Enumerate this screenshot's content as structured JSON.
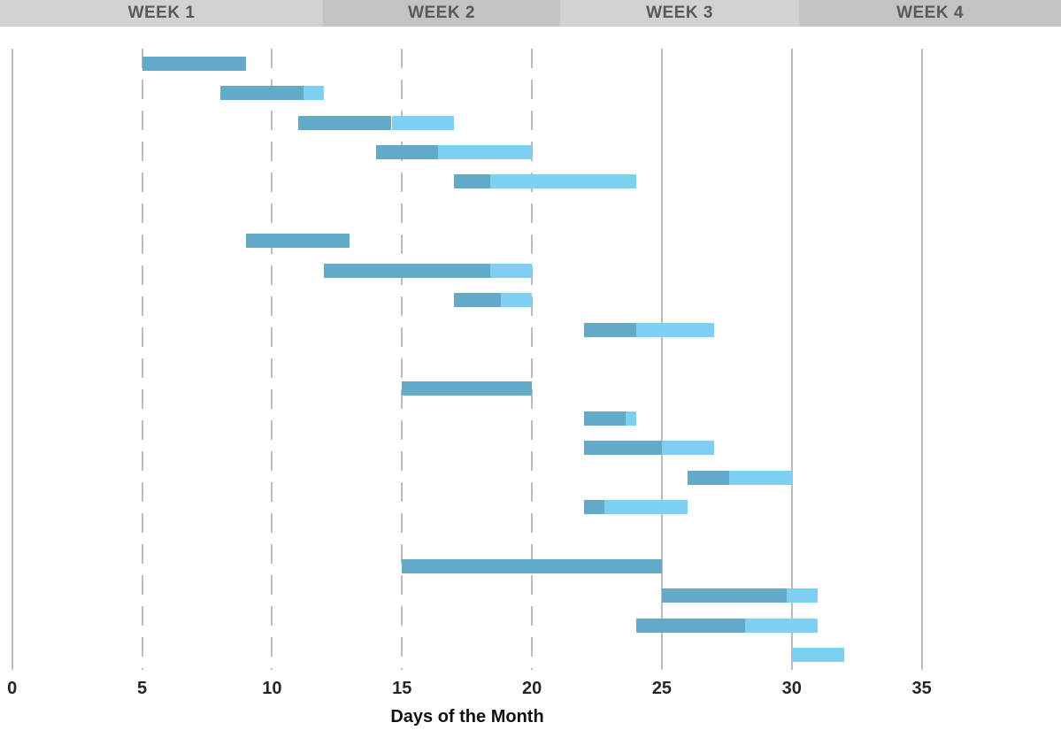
{
  "header": {
    "weeks": [
      {
        "label": "WEEK 1",
        "bg": "#d2d2d2"
      },
      {
        "label": "WEEK 2",
        "bg": "#c3c3c3"
      },
      {
        "label": "WEEK 3",
        "bg": "#d2d2d2"
      },
      {
        "label": "WEEK 4",
        "bg": "#c3c3c3"
      }
    ],
    "text_color": "#595959"
  },
  "chart_data": {
    "type": "bar",
    "subtype": "gantt",
    "title": "",
    "xlabel": "Days of the Month",
    "ylabel": "",
    "xlim": [
      0,
      35
    ],
    "x_ticks": [
      0,
      5,
      10,
      15,
      20,
      25,
      30,
      35
    ],
    "dashed_gridline_days": [
      5,
      10,
      15,
      20
    ],
    "solid_gridline_days": [
      0,
      25,
      30,
      35
    ],
    "grid": true,
    "legend": false,
    "colors": {
      "complete": "#63aac8",
      "remaining": "#7ed0f2",
      "gridline": "#bcbcbc",
      "tick_text": "#262626"
    },
    "groups": [
      {
        "tasks": [
          {
            "start_day": 5,
            "end_day": 9,
            "percent_complete": 100
          },
          {
            "start_day": 8,
            "end_day": 12,
            "percent_complete": 80
          },
          {
            "start_day": 11,
            "end_day": 17,
            "percent_complete": 60
          },
          {
            "start_day": 14,
            "end_day": 20,
            "percent_complete": 40
          },
          {
            "start_day": 17,
            "end_day": 24,
            "percent_complete": 20
          }
        ]
      },
      {
        "tasks": [
          {
            "start_day": 9,
            "end_day": 13,
            "percent_complete": 100
          },
          {
            "start_day": 12,
            "end_day": 20,
            "percent_complete": 80
          },
          {
            "start_day": 17,
            "end_day": 20,
            "percent_complete": 60
          },
          {
            "start_day": 22,
            "end_day": 27,
            "percent_complete": 40
          }
        ]
      },
      {
        "tasks": [
          {
            "start_day": 15,
            "end_day": 20,
            "percent_complete": 100
          },
          {
            "start_day": 22,
            "end_day": 24,
            "percent_complete": 80
          },
          {
            "start_day": 22,
            "end_day": 27,
            "percent_complete": 60
          },
          {
            "start_day": 26,
            "end_day": 30,
            "percent_complete": 40
          },
          {
            "start_day": 22,
            "end_day": 26,
            "percent_complete": 20
          }
        ]
      },
      {
        "tasks": [
          {
            "start_day": 15,
            "end_day": 25,
            "percent_complete": 100
          },
          {
            "start_day": 25,
            "end_day": 31,
            "percent_complete": 80
          },
          {
            "start_day": 24,
            "end_day": 31,
            "percent_complete": 60
          },
          {
            "start_day": 30,
            "end_day": 32,
            "percent_complete": 0
          }
        ]
      }
    ]
  }
}
